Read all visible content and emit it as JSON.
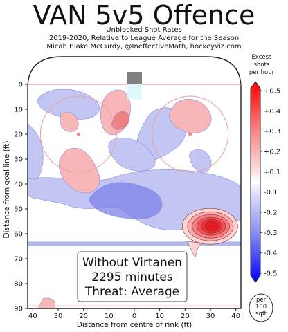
{
  "header": {
    "title": "VAN 5v5 Offence",
    "subtitle_line1": "Unblocked Shot Rates",
    "subtitle_line2": "2019-2020, Relative to League Average for the Season",
    "subtitle_line3": "Micah Blake McCurdy, @IneffectiveMath, hockeyviz.com"
  },
  "chart_data": {
    "type": "heatmap",
    "title": "VAN 5v5 Offence",
    "xlabel": "Distance from centre of rink (ft)",
    "ylabel": "Distance from goal line (ft)",
    "xlim": [
      42,
      -42
    ],
    "ylim": [
      0,
      90
    ],
    "x_ticks": [
      40,
      30,
      20,
      10,
      0,
      10,
      20,
      30,
      40
    ],
    "y_ticks": [
      0,
      10,
      20,
      30,
      40,
      50,
      60,
      70,
      80,
      90
    ],
    "grid": false,
    "annotation_box": {
      "line1": "Without Virtanen",
      "line2": "2295 minutes",
      "line3": "Threat: Average"
    },
    "colorbar": {
      "title_line1": "Excess",
      "title_line2": "shots",
      "title_line3": "per hour",
      "ticks": [
        "+0.5",
        "+0.4",
        "+0.3",
        "+0.2",
        "+0.1",
        "-0.1",
        "-0.2",
        "-0.3",
        "-0.4",
        "-0.5"
      ],
      "range": [
        -0.5,
        0.5
      ]
    },
    "unit_badge": {
      "line1": "per",
      "line2": "100",
      "line3": "sqft"
    },
    "hot_spots": [
      {
        "x": -29,
        "y": 57,
        "value": 0.5
      },
      {
        "x": -14,
        "y": 14,
        "value": 0.1
      },
      {
        "x": -21,
        "y": 33,
        "value": 0.1
      },
      {
        "x": 6,
        "y": 14,
        "value": 0.2
      },
      {
        "x": 22,
        "y": 14,
        "value": 0.1
      },
      {
        "x": 25,
        "y": 56,
        "value": 0.1
      }
    ],
    "cold_spots": [
      {
        "x": 12,
        "y": 48,
        "value": -0.2
      },
      {
        "x": -8,
        "y": 20,
        "value": -0.1
      },
      {
        "x": 25,
        "y": 34,
        "value": -0.1
      }
    ],
    "colors": {
      "hot": "#e8262a",
      "warm": "#f7b6b8",
      "cool": "#c3c6f3",
      "cold": "#7c80e8",
      "rink_line_red": "#e8a0a0",
      "blue_line": "#b0b8e8",
      "goal_net": "#808080"
    }
  }
}
